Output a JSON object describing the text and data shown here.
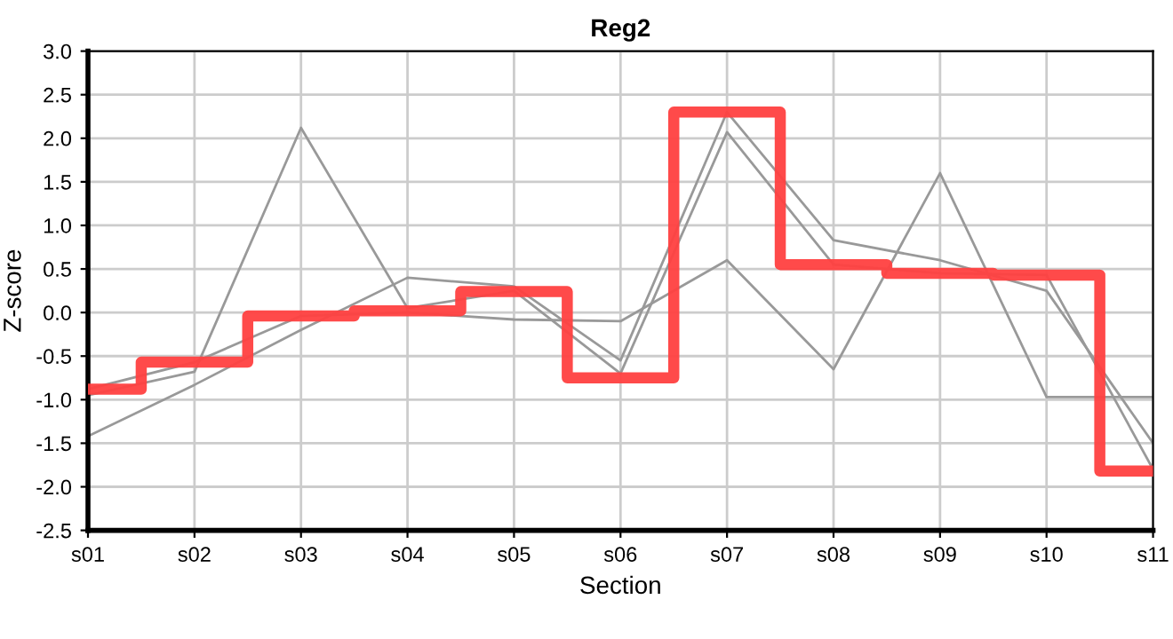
{
  "chart_data": {
    "type": "line",
    "title": "Reg2",
    "xlabel": "Section",
    "ylabel": "Z-score",
    "categories": [
      "s01",
      "s02",
      "s03",
      "s04",
      "s05",
      "s06",
      "s07",
      "s08",
      "s09",
      "s10",
      "s11"
    ],
    "series": [
      {
        "color": "#999999",
        "values": [
          -1.42,
          -0.83,
          -0.2,
          0.4,
          0.3,
          -0.55,
          2.3,
          0.83,
          0.6,
          0.25,
          -1.5
        ]
      },
      {
        "color": "#999999",
        "values": [
          -0.95,
          -0.68,
          2.12,
          0.05,
          0.25,
          -0.7,
          2.07,
          0.55,
          0.45,
          0.43,
          -1.8
        ]
      },
      {
        "color": "#999999",
        "values": [
          -0.88,
          -0.57,
          -0.04,
          0.0,
          -0.08,
          -0.1,
          0.6,
          -0.65,
          1.6,
          -0.97,
          -0.97
        ]
      },
      {
        "type": "step",
        "color": "#ff4040",
        "values": [
          -0.88,
          -0.57,
          -0.04,
          0.02,
          0.24,
          -0.75,
          2.3,
          0.55,
          0.45,
          0.43,
          -1.82
        ]
      }
    ],
    "ylim": [
      -2.5,
      3.0
    ],
    "yticks": [
      {
        "value": -2.5,
        "label": "-2.5"
      },
      {
        "value": -2.0,
        "label": "-2.0"
      },
      {
        "value": -1.5,
        "label": "-1.5"
      },
      {
        "value": -1.0,
        "label": "-1.0"
      },
      {
        "value": -0.5,
        "label": "-0.5"
      },
      {
        "value": 0.0,
        "label": "0.0"
      },
      {
        "value": 0.5,
        "label": "0.5"
      },
      {
        "value": 1.0,
        "label": "1.0"
      },
      {
        "value": 1.5,
        "label": "1.5"
      },
      {
        "value": 2.0,
        "label": "2.0"
      },
      {
        "value": 2.5,
        "label": "2.5"
      },
      {
        "value": 3.0,
        "label": "3.0"
      }
    ],
    "grid": true,
    "legend": false
  }
}
